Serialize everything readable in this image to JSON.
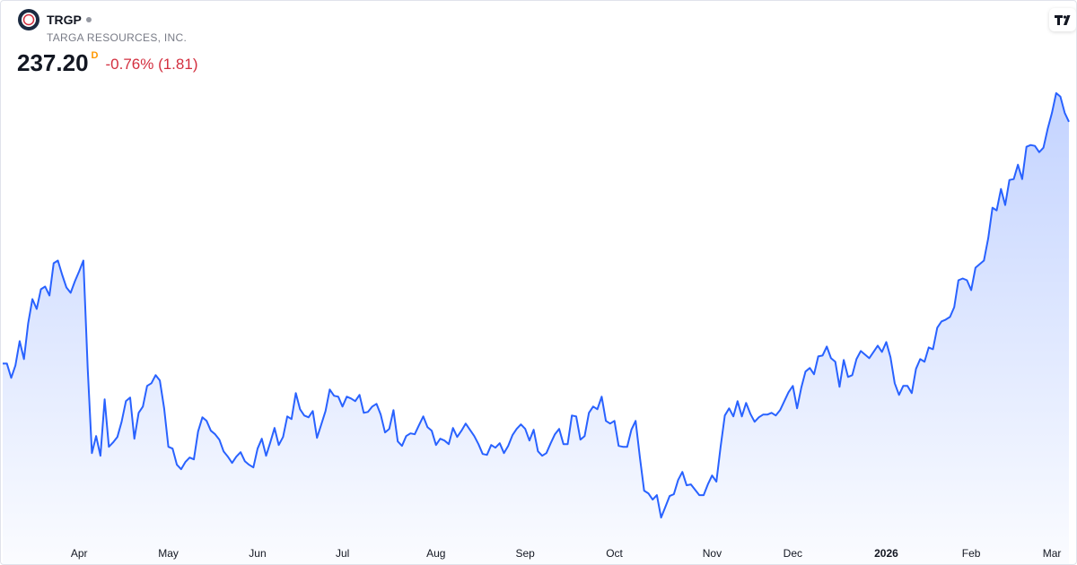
{
  "chart_data": {
    "type": "area",
    "symbol": "TRGP",
    "subtitle": "TARGA RESOURCES, INC.",
    "price": "237.20",
    "price_flag": "D",
    "change": "-0.76% (1.81)",
    "color": "#2962ff",
    "values": [
      183.2,
      183.2,
      180.0,
      182.8,
      188.2,
      184.2,
      192.2,
      197.6,
      195.4,
      199.8,
      200.4,
      198.4,
      205.6,
      206.2,
      203.0,
      200.2,
      199.0,
      201.6,
      203.8,
      206.2,
      182.2,
      163.2,
      167.0,
      162.6,
      175.2,
      164.6,
      165.6,
      166.8,
      170.2,
      174.8,
      175.6,
      166.4,
      172.2,
      173.6,
      178.2,
      178.8,
      180.6,
      179.4,
      173.2,
      164.6,
      164.2,
      160.6,
      159.6,
      161.2,
      162.2,
      161.8,
      168.0,
      171.2,
      170.4,
      168.2,
      167.4,
      166.2,
      163.6,
      162.4,
      161.0,
      162.4,
      163.4,
      161.4,
      160.6,
      160.0,
      164.2,
      166.4,
      162.6,
      165.6,
      168.8,
      165.0,
      166.8,
      171.4,
      170.8,
      176.6,
      173.0,
      171.6,
      171.2,
      172.6,
      166.6,
      169.6,
      172.6,
      177.4,
      176.0,
      175.8,
      173.6,
      175.8,
      175.4,
      174.8,
      176.2,
      172.2,
      172.4,
      173.6,
      174.2,
      171.8,
      167.8,
      168.6,
      172.8,
      165.8,
      164.8,
      167.0,
      167.6,
      167.4,
      169.4,
      171.4,
      169.0,
      168.2,
      165.0,
      166.4,
      166.0,
      165.2,
      168.8,
      166.8,
      168.2,
      169.8,
      168.4,
      167.0,
      165.2,
      163.0,
      162.8,
      165.0,
      164.4,
      165.4,
      163.2,
      164.8,
      167.2,
      168.6,
      169.6,
      168.6,
      166.0,
      168.4,
      163.6,
      162.6,
      163.2,
      165.4,
      167.4,
      168.6,
      165.2,
      165.2,
      171.6,
      171.4,
      166.2,
      167.0,
      172.2,
      173.6,
      173.0,
      175.8,
      170.4,
      169.8,
      170.4,
      164.8,
      164.6,
      164.6,
      168.4,
      170.4,
      162.2,
      154.8,
      154.2,
      152.8,
      153.8,
      148.8,
      151.2,
      153.6,
      154.0,
      157.2,
      159.0,
      156.0,
      156.2,
      155.0,
      153.8,
      153.8,
      156.2,
      158.2,
      156.8,
      164.6,
      171.6,
      173.2,
      171.4,
      174.8,
      171.4,
      174.4,
      172.0,
      170.2,
      171.2,
      171.8,
      171.8,
      172.2,
      171.6,
      172.8,
      174.8,
      176.8,
      178.2,
      173.2,
      177.8,
      181.4,
      182.2,
      180.8,
      184.8,
      185.0,
      187.0,
      184.4,
      183.6,
      178.0,
      184.0,
      180.2,
      180.6,
      184.2,
      186.0,
      185.2,
      184.4,
      185.8,
      187.2,
      185.8,
      188.0,
      184.6,
      178.8,
      176.2,
      178.2,
      178.2,
      176.6,
      182.0,
      184.2,
      183.6,
      186.8,
      186.4,
      191.2,
      192.6,
      193.0,
      193.6,
      195.8,
      201.8,
      202.2,
      201.8,
      199.6,
      204.6,
      205.4,
      206.2,
      211.2,
      218.0,
      217.4,
      222.2,
      218.6,
      224.2,
      224.4,
      227.6,
      224.4,
      231.6,
      232.0,
      231.8,
      230.4,
      231.4,
      235.6,
      239.2,
      243.6,
      242.8,
      239.2,
      237.2
    ],
    "xlim": [
      0,
      251
    ],
    "xticks": [
      {
        "value": 18,
        "label": "Apr"
      },
      {
        "value": 39,
        "label": "May"
      },
      {
        "value": 60,
        "label": "Jun"
      },
      {
        "value": 80,
        "label": "Jul"
      },
      {
        "value": 102,
        "label": "Aug"
      },
      {
        "value": 123,
        "label": "Sep"
      },
      {
        "value": 144,
        "label": "Oct"
      },
      {
        "value": 167,
        "label": "Nov"
      },
      {
        "value": 186,
        "label": "Dec"
      },
      {
        "value": 208,
        "label": "2026"
      },
      {
        "value": 228,
        "label": "Feb"
      },
      {
        "value": 247,
        "label": "Mar"
      }
    ],
    "ylim": [
      138.2,
      264.2
    ]
  }
}
